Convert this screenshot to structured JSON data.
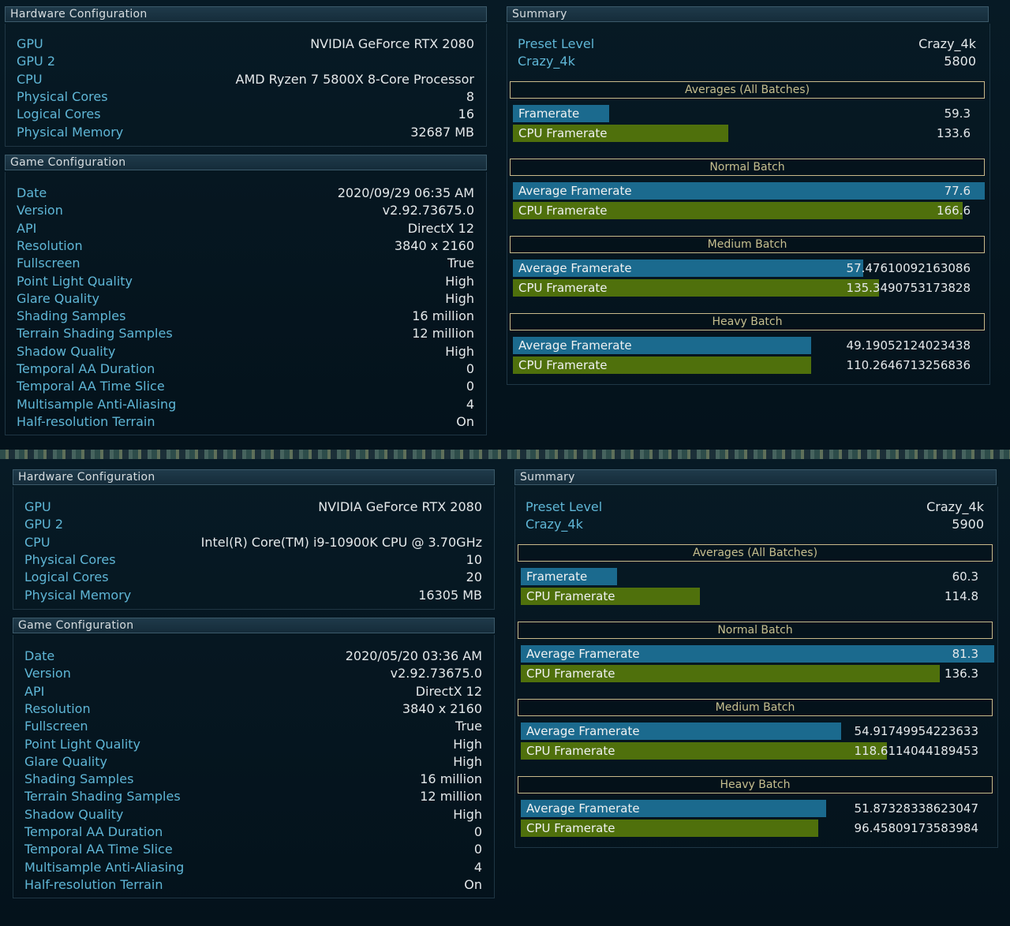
{
  "screens": [
    {
      "hardware": {
        "title": "Hardware Configuration",
        "rows": [
          {
            "label": "GPU",
            "value": "NVIDIA GeForce RTX 2080"
          },
          {
            "label": "GPU 2",
            "value": ""
          },
          {
            "label": "CPU",
            "value": "AMD Ryzen 7 5800X 8-Core Processor"
          },
          {
            "label": "Physical Cores",
            "value": "8"
          },
          {
            "label": "Logical Cores",
            "value": "16"
          },
          {
            "label": "Physical Memory",
            "value": "32687 MB"
          }
        ]
      },
      "game": {
        "title": "Game Configuration",
        "rows": [
          {
            "label": "Date",
            "value": "2020/09/29 06:35 AM"
          },
          {
            "label": "Version",
            "value": "v2.92.73675.0"
          },
          {
            "label": "API",
            "value": "DirectX 12"
          },
          {
            "label": "Resolution",
            "value": "3840 x 2160"
          },
          {
            "label": "Fullscreen",
            "value": "True"
          },
          {
            "label": "Point Light Quality",
            "value": "High"
          },
          {
            "label": "Glare Quality",
            "value": "High"
          },
          {
            "label": "Shading Samples",
            "value": "16 million"
          },
          {
            "label": "Terrain Shading Samples",
            "value": "12 million"
          },
          {
            "label": "Shadow Quality",
            "value": "High"
          },
          {
            "label": "Temporal AA Duration",
            "value": "0"
          },
          {
            "label": "Temporal AA Time Slice",
            "value": "0"
          },
          {
            "label": "Multisample Anti-Aliasing",
            "value": "4"
          },
          {
            "label": "Half-resolution Terrain",
            "value": "On"
          }
        ]
      },
      "summary": {
        "title": "Summary",
        "rows": [
          {
            "label": "Preset Level",
            "value": "Crazy_4k"
          },
          {
            "label": "Crazy_4k",
            "value": "5800"
          }
        ],
        "sections": [
          {
            "title": "Averages (All Batches)",
            "bars": [
              {
                "label": "Framerate",
                "value": "59.3",
                "fraction": 0.204,
                "color": "blue"
              },
              {
                "label": "CPU Framerate",
                "value": "133.6",
                "fraction": 0.455,
                "color": "green"
              }
            ]
          },
          {
            "title": "Normal Batch",
            "bars": [
              {
                "label": "Average Framerate",
                "value": "77.6",
                "fraction": 0.997,
                "color": "blue"
              },
              {
                "label": "CPU Framerate",
                "value": "166.6",
                "fraction": 0.95,
                "color": "green"
              }
            ]
          },
          {
            "title": "Medium Batch",
            "bars": [
              {
                "label": "Average Framerate",
                "value": "57.47610092163086",
                "fraction": 0.74,
                "color": "blue"
              },
              {
                "label": "CPU Framerate",
                "value": "135.3490753173828",
                "fraction": 0.773,
                "color": "green"
              }
            ]
          },
          {
            "title": "Heavy Batch",
            "bars": [
              {
                "label": "Average Framerate",
                "value": "49.19052124023438",
                "fraction": 0.63,
                "color": "blue"
              },
              {
                "label": "CPU Framerate",
                "value": "110.2646713256836",
                "fraction": 0.63,
                "color": "green"
              }
            ]
          }
        ]
      }
    },
    {
      "hardware": {
        "title": "Hardware Configuration",
        "rows": [
          {
            "label": "GPU",
            "value": "NVIDIA GeForce RTX 2080"
          },
          {
            "label": "GPU 2",
            "value": ""
          },
          {
            "label": "CPU",
            "value": "Intel(R) Core(TM) i9-10900K CPU @ 3.70GHz"
          },
          {
            "label": "Physical Cores",
            "value": "10"
          },
          {
            "label": "Logical Cores",
            "value": "20"
          },
          {
            "label": "Physical Memory",
            "value": "16305 MB"
          }
        ]
      },
      "game": {
        "title": "Game Configuration",
        "rows": [
          {
            "label": "Date",
            "value": "2020/05/20 03:36 AM"
          },
          {
            "label": "Version",
            "value": "v2.92.73675.0"
          },
          {
            "label": "API",
            "value": "DirectX 12"
          },
          {
            "label": "Resolution",
            "value": "3840 x 2160"
          },
          {
            "label": "Fullscreen",
            "value": "True"
          },
          {
            "label": "Point Light Quality",
            "value": "High"
          },
          {
            "label": "Glare Quality",
            "value": "High"
          },
          {
            "label": "Shading Samples",
            "value": "16 million"
          },
          {
            "label": "Terrain Shading Samples",
            "value": "12 million"
          },
          {
            "label": "Shadow Quality",
            "value": "High"
          },
          {
            "label": "Temporal AA Duration",
            "value": "0"
          },
          {
            "label": "Temporal AA Time Slice",
            "value": "0"
          },
          {
            "label": "Multisample Anti-Aliasing",
            "value": "4"
          },
          {
            "label": "Half-resolution Terrain",
            "value": "On"
          }
        ]
      },
      "summary": {
        "title": "Summary",
        "rows": [
          {
            "label": "Preset Level",
            "value": "Crazy_4k"
          },
          {
            "label": "Crazy_4k",
            "value": "5900"
          }
        ],
        "sections": [
          {
            "title": "Averages (All Batches)",
            "bars": [
              {
                "label": "Framerate",
                "value": "60.3",
                "fraction": 0.203,
                "color": "blue"
              },
              {
                "label": "CPU Framerate",
                "value": "114.8",
                "fraction": 0.378,
                "color": "green"
              }
            ]
          },
          {
            "title": "Normal Batch",
            "bars": [
              {
                "label": "Average Framerate",
                "value": "81.3",
                "fraction": 1.0,
                "color": "blue"
              },
              {
                "label": "CPU Framerate",
                "value": "136.3",
                "fraction": 0.885,
                "color": "green"
              }
            ]
          },
          {
            "title": "Medium Batch",
            "bars": [
              {
                "label": "Average Framerate",
                "value": "54.91749954223633",
                "fraction": 0.677,
                "color": "blue"
              },
              {
                "label": "CPU Framerate",
                "value": "118.6114044189453",
                "fraction": 0.773,
                "color": "green"
              }
            ]
          },
          {
            "title": "Heavy Batch",
            "bars": [
              {
                "label": "Average Framerate",
                "value": "51.87328338623047",
                "fraction": 0.645,
                "color": "blue"
              },
              {
                "label": "CPU Framerate",
                "value": "96.45809173583984",
                "fraction": 0.628,
                "color": "green"
              }
            ]
          }
        ]
      }
    }
  ]
}
